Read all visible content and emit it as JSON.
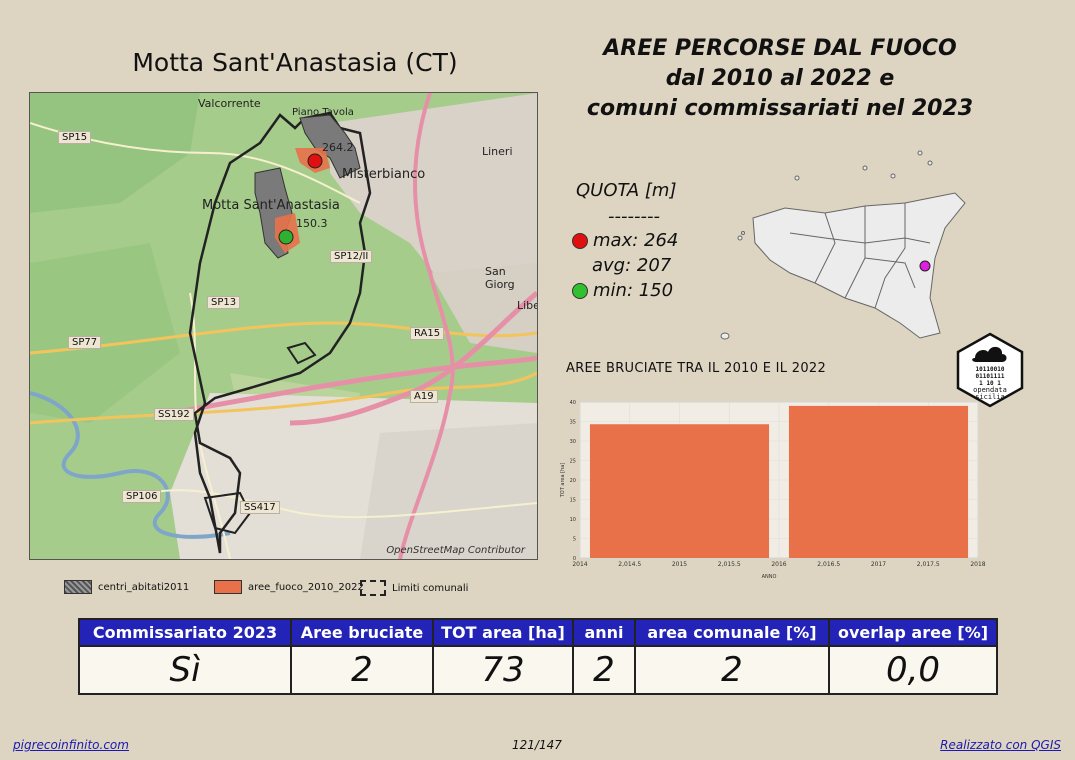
{
  "map": {
    "title": "Motta Sant'Anastasia (CT)",
    "attribution": "OpenStreetMap Contributor",
    "labels": {
      "valcorrente": "Valcorrente",
      "piano_tavola": "Piano Tavola",
      "lineri": "Lineri",
      "misterbianco": "Misterbianco",
      "motta": "Motta Sant'Anastasia",
      "san_giorgio": "San Giorg",
      "libe": "Libe"
    },
    "roads": [
      "SP15",
      "SP12/II",
      "SP13",
      "SP77",
      "RA15",
      "A19",
      "SS192",
      "SP106",
      "SS417"
    ],
    "points": [
      {
        "value": "264.2",
        "color": "#e01010"
      },
      {
        "value": "150.3",
        "color": "#30b030"
      }
    ]
  },
  "title": {
    "line1": "AREE PERCORSE DAL FUOCO",
    "line2": "dal 2010 al 2022 e",
    "line3": "comuni commissariati nel 2023"
  },
  "legend": {
    "centri": "centri_abitati2011",
    "aree": "aree_fuoco_2010_2022",
    "limiti": "Limiti comunali"
  },
  "quota": {
    "title": "QUOTA [m]",
    "separator": "--------",
    "max_label": "max: 264",
    "avg_label": "avg: 207",
    "min_label": "min: 150"
  },
  "logo": {
    "lines": [
      "10110010",
      "01101111",
      "1 10 1"
    ],
    "text1": "opendata",
    "text2": "sicilia"
  },
  "chart_data": {
    "type": "bar",
    "title": "AREE BRUCIATE TRA IL 2010 E IL 2022",
    "xlabel": "ANNO",
    "ylabel": "TOT area [ha]",
    "x_ticks": [
      "2014",
      "2,014.5",
      "2015",
      "2,015.5",
      "2016",
      "2,016.5",
      "2017",
      "2,017.5",
      "2018"
    ],
    "y_ticks": [
      "0",
      "5",
      "10",
      "15",
      "20",
      "25",
      "30",
      "35",
      "40"
    ],
    "xlim": [
      2014,
      2018
    ],
    "ylim": [
      0,
      40
    ],
    "bars": [
      {
        "x0": 2014.1,
        "x1": 2015.9,
        "value": 34.3
      },
      {
        "x0": 2016.1,
        "x1": 2017.9,
        "value": 39
      }
    ],
    "bar_color": "#e8714a"
  },
  "stats": {
    "headers": [
      "Commissariato 2023",
      "Aree bruciate",
      "TOT area [ha]",
      "anni",
      "area comunale [%]",
      "overlap aree [%]"
    ],
    "values": [
      "Sì",
      "2",
      "73",
      "2",
      "2",
      "0,0"
    ]
  },
  "footer": {
    "left": "pigrecoinfinito.com",
    "page": "121/147",
    "right": "Realizzato con QGIS"
  }
}
